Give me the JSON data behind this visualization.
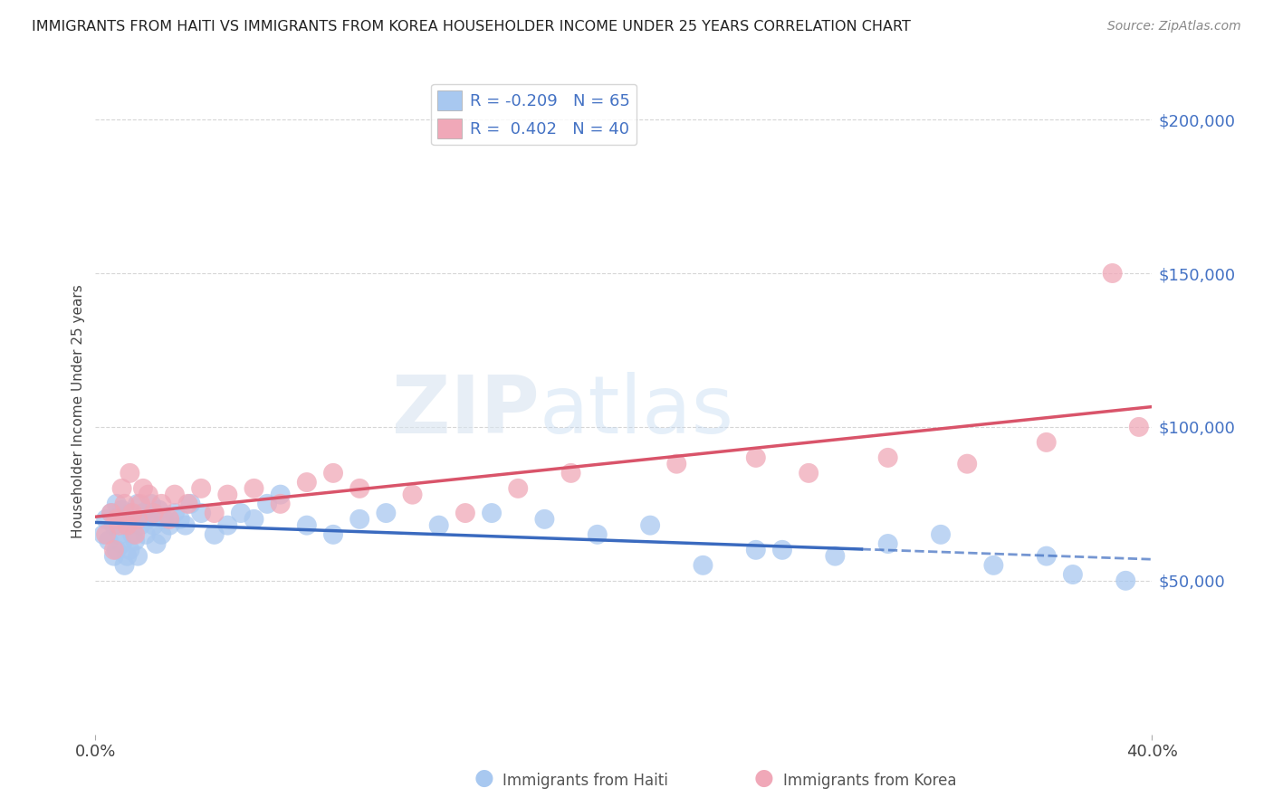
{
  "title": "IMMIGRANTS FROM HAITI VS IMMIGRANTS FROM KOREA HOUSEHOLDER INCOME UNDER 25 YEARS CORRELATION CHART",
  "source": "Source: ZipAtlas.com",
  "ylabel": "Householder Income Under 25 years",
  "xlim": [
    0.0,
    0.4
  ],
  "ylim": [
    0,
    210000
  ],
  "haiti_color": "#a8c8f0",
  "korea_color": "#f0a8b8",
  "haiti_line_color": "#3a6abf",
  "korea_line_color": "#d9546a",
  "haiti_R": -0.209,
  "haiti_N": 65,
  "korea_R": 0.402,
  "korea_N": 40,
  "legend_haiti": "Immigrants from Haiti",
  "legend_korea": "Immigrants from Korea",
  "haiti_x": [
    0.003,
    0.004,
    0.005,
    0.006,
    0.007,
    0.007,
    0.008,
    0.008,
    0.009,
    0.009,
    0.01,
    0.01,
    0.011,
    0.011,
    0.012,
    0.012,
    0.013,
    0.013,
    0.014,
    0.014,
    0.015,
    0.015,
    0.016,
    0.016,
    0.017,
    0.018,
    0.019,
    0.02,
    0.021,
    0.022,
    0.023,
    0.024,
    0.025,
    0.026,
    0.028,
    0.03,
    0.032,
    0.034,
    0.036,
    0.04,
    0.045,
    0.05,
    0.055,
    0.06,
    0.065,
    0.07,
    0.08,
    0.09,
    0.1,
    0.11,
    0.13,
    0.15,
    0.17,
    0.19,
    0.21,
    0.23,
    0.25,
    0.28,
    0.3,
    0.32,
    0.26,
    0.34,
    0.36,
    0.37,
    0.39
  ],
  "haiti_y": [
    65000,
    70000,
    63000,
    72000,
    68000,
    58000,
    75000,
    60000,
    71000,
    65000,
    73000,
    62000,
    70000,
    55000,
    68000,
    58000,
    72000,
    60000,
    71000,
    65000,
    70000,
    63000,
    75000,
    58000,
    68000,
    72000,
    65000,
    70000,
    75000,
    68000,
    62000,
    73000,
    65000,
    70000,
    68000,
    72000,
    70000,
    68000,
    75000,
    72000,
    65000,
    68000,
    72000,
    70000,
    75000,
    78000,
    68000,
    65000,
    70000,
    72000,
    68000,
    72000,
    70000,
    65000,
    68000,
    55000,
    60000,
    58000,
    62000,
    65000,
    60000,
    55000,
    58000,
    52000,
    50000
  ],
  "korea_x": [
    0.004,
    0.006,
    0.007,
    0.008,
    0.009,
    0.01,
    0.011,
    0.012,
    0.013,
    0.014,
    0.015,
    0.016,
    0.017,
    0.018,
    0.02,
    0.022,
    0.025,
    0.028,
    0.03,
    0.035,
    0.04,
    0.045,
    0.05,
    0.06,
    0.07,
    0.08,
    0.09,
    0.1,
    0.12,
    0.14,
    0.16,
    0.18,
    0.22,
    0.25,
    0.27,
    0.3,
    0.33,
    0.36,
    0.385,
    0.395
  ],
  "korea_y": [
    65000,
    72000,
    60000,
    70000,
    68000,
    80000,
    75000,
    68000,
    85000,
    72000,
    65000,
    70000,
    75000,
    80000,
    78000,
    72000,
    75000,
    70000,
    78000,
    75000,
    80000,
    72000,
    78000,
    80000,
    75000,
    82000,
    85000,
    80000,
    78000,
    72000,
    80000,
    85000,
    88000,
    90000,
    85000,
    90000,
    88000,
    95000,
    150000,
    100000
  ]
}
